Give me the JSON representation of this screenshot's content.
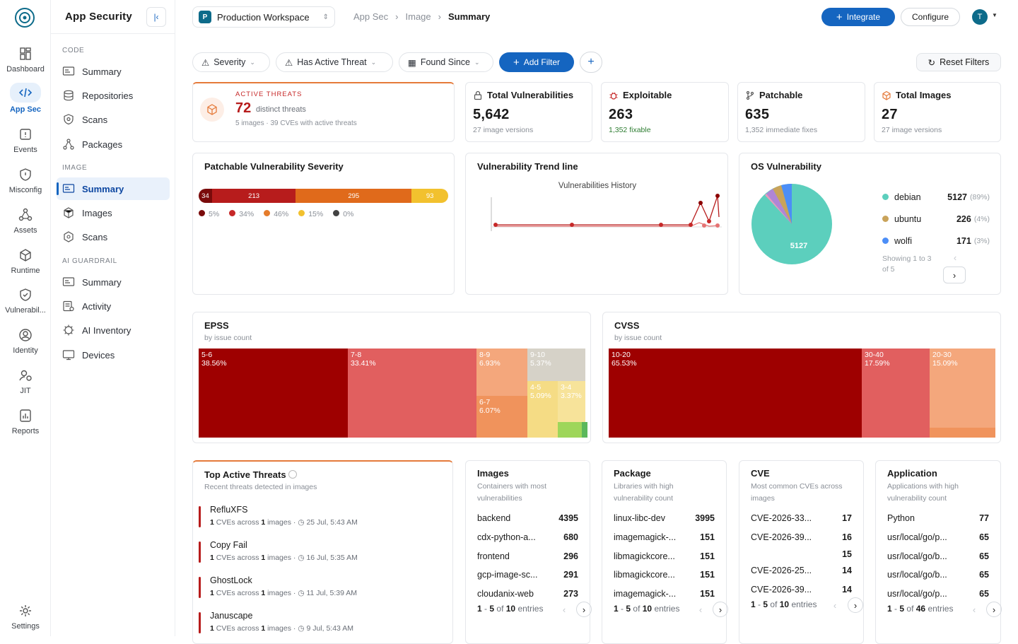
{
  "rail": {
    "items": [
      {
        "label": "Dashboard"
      },
      {
        "label": "App Sec"
      },
      {
        "label": "Events"
      },
      {
        "label": "Misconfig"
      },
      {
        "label": "Assets"
      },
      {
        "label": "Runtime"
      },
      {
        "label": "Vulnerabil..."
      },
      {
        "label": "Identity"
      },
      {
        "label": "JIT"
      },
      {
        "label": "Reports"
      }
    ],
    "settings": "Settings"
  },
  "sidebar": {
    "title": "App Security",
    "sections": [
      {
        "label": "CODE",
        "items": [
          "Summary",
          "Repositories",
          "Scans",
          "Packages"
        ]
      },
      {
        "label": "IMAGE",
        "items": [
          "Summary",
          "Images",
          "Scans"
        ]
      },
      {
        "label": "AI GUARDRAIL",
        "items": [
          "Summary",
          "Activity",
          "AI Inventory",
          "Devices"
        ]
      }
    ]
  },
  "topbar": {
    "workspace_badge": "P",
    "workspace": "Production Workspace",
    "breadcrumb": [
      "App Sec",
      "Image",
      "Summary"
    ],
    "integrate": "Integrate",
    "configure": "Configure",
    "avatar": "T"
  },
  "filters": {
    "items": [
      "Severity",
      "Has Active Threat",
      "Found Since"
    ],
    "add": "Add Filter",
    "reset": "Reset Filters"
  },
  "active_threats": {
    "label": "ACTIVE THREATS",
    "count": "72",
    "count_label": "distinct threats",
    "detail": "5 images · 39 CVEs with active threats"
  },
  "kpis": [
    {
      "title": "Total Vulnerabilities",
      "value": "5,642",
      "sub": "27 image versions",
      "icon": "lock-icon"
    },
    {
      "title": "Exploitable",
      "value": "263",
      "sub": "1,352 fixable",
      "icon": "bug-icon"
    },
    {
      "title": "Patchable",
      "value": "635",
      "sub": "1,352 immediate fixes",
      "icon": "branch-icon"
    },
    {
      "title": "Total Images",
      "value": "27",
      "sub": "27 image versions",
      "icon": "cube-icon"
    }
  ],
  "patchable": {
    "title": "Patchable Vulnerability Severity",
    "segments": [
      {
        "value": "34",
        "color": "#7a0b0b"
      },
      {
        "value": "213",
        "color": "#b71c1c"
      },
      {
        "value": "295",
        "color": "#e06a1b"
      },
      {
        "value": "93",
        "color": "#f2c12e"
      }
    ],
    "legend": [
      {
        "pct": "5%",
        "color": "#7a0b0b"
      },
      {
        "pct": "34%",
        "color": "#c62828"
      },
      {
        "pct": "46%",
        "color": "#e57c2b"
      },
      {
        "pct": "15%",
        "color": "#f2c12e"
      },
      {
        "pct": "0%",
        "color": "#424242"
      }
    ]
  },
  "trend": {
    "title": "Vulnerability Trend line",
    "chart_title": "Vulnerabilities History"
  },
  "os": {
    "title": "OS Vulnerability",
    "pie_label": "5127",
    "rows": [
      {
        "name": "debian",
        "value": "5127",
        "pct": "(89%)",
        "color": "#5ccfbd"
      },
      {
        "name": "ubuntu",
        "value": "226",
        "pct": "(4%)",
        "color": "#c9a35a"
      },
      {
        "name": "wolfi",
        "value": "171",
        "pct": "(3%)",
        "color": "#4c8ef7"
      }
    ],
    "showing": "Showing 1 to 3 of 5"
  },
  "epss": {
    "title": "EPSS",
    "sub": "by issue count",
    "cells": [
      {
        "label": "5-6",
        "pct": "38.56%"
      },
      {
        "label": "7-8",
        "pct": "33.41%"
      },
      {
        "label": "8-9",
        "pct": "6.93%"
      },
      {
        "label": "9-10",
        "pct": "5.37%"
      },
      {
        "label": "6-7",
        "pct": "6.07%"
      },
      {
        "label": "4-5",
        "pct": "5.09%"
      },
      {
        "label": "3-4",
        "pct": "3.37%"
      }
    ]
  },
  "cvss": {
    "title": "CVSS",
    "sub": "by issue count",
    "cells": [
      {
        "label": "10-20",
        "pct": "65.53%"
      },
      {
        "label": "30-40",
        "pct": "17.59%"
      },
      {
        "label": "20-30",
        "pct": "15.09%"
      }
    ]
  },
  "top_threats": {
    "title": "Top Active Threats",
    "sub": "Recent threats detected in images",
    "items": [
      {
        "name": "RefluXFS",
        "cves": "1",
        "images": "1",
        "time": "25 Jul, 5:43 AM"
      },
      {
        "name": "Copy Fail",
        "cves": "1",
        "images": "1",
        "time": "16 Jul, 5:35 AM"
      },
      {
        "name": "GhostLock",
        "cves": "1",
        "images": "1",
        "time": "11 Jul, 5:39 AM"
      },
      {
        "name": "Januscape",
        "cves": "1",
        "images": "1",
        "time": "9 Jul, 5:43 AM"
      }
    ],
    "cves_across": "CVEs across",
    "images_word": "images"
  },
  "lists": [
    {
      "title": "Images",
      "sub": "Containers with most vulnerabilities",
      "rows": [
        [
          "backend",
          "4395"
        ],
        [
          "cdx-python-a...",
          "680"
        ],
        [
          "frontend",
          "296"
        ],
        [
          "gcp-image-sc...",
          "291"
        ],
        [
          "cloudanix-web",
          "273"
        ]
      ],
      "from": "1",
      "to": "5",
      "total": "10"
    },
    {
      "title": "Package",
      "sub": "Libraries with high vulnerability count",
      "rows": [
        [
          "linux-libc-dev",
          "3995"
        ],
        [
          "imagemagick-...",
          "151"
        ],
        [
          "libmagickcore...",
          "151"
        ],
        [
          "libmagickcore...",
          "151"
        ],
        [
          "imagemagick-...",
          "151"
        ]
      ],
      "from": "1",
      "to": "5",
      "total": "10"
    },
    {
      "title": "CVE",
      "sub": "Most common CVEs across images",
      "rows": [
        [
          "CVE-2026-33...",
          "17"
        ],
        [
          "CVE-2026-39...",
          "16"
        ],
        [
          "",
          "15"
        ],
        [
          "CVE-2026-25...",
          "14"
        ],
        [
          "CVE-2026-39...",
          "14"
        ]
      ],
      "from": "1",
      "to": "5",
      "total": "10"
    },
    {
      "title": "Application",
      "sub": "Applications with high vulnerability count",
      "rows": [
        [
          "Python",
          "77"
        ],
        [
          "usr/local/go/p...",
          "65"
        ],
        [
          "usr/local/go/b...",
          "65"
        ],
        [
          "usr/local/go/b...",
          "65"
        ],
        [
          "usr/local/go/p...",
          "65"
        ]
      ],
      "from": "1",
      "to": "5",
      "total": "46"
    }
  ],
  "pager_of": "of",
  "pager_entries": "entries"
}
